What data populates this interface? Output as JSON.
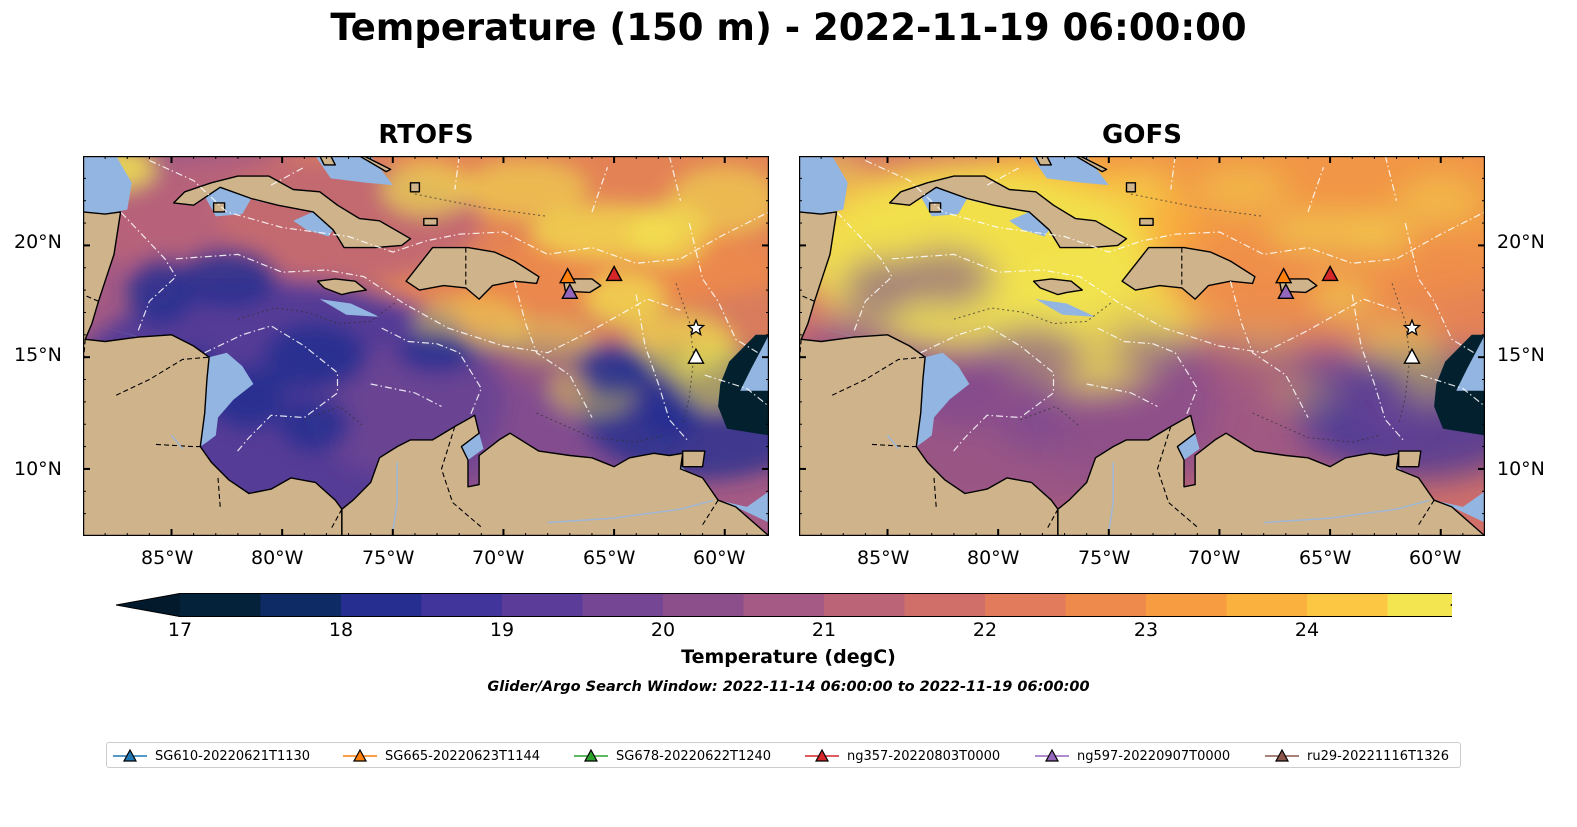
{
  "title": "Temperature (150 m) - 2022-11-19 06:00:00",
  "panels": [
    {
      "title": "RTOFS",
      "warm_scale": 1.0
    },
    {
      "title": "GOFS",
      "warm_scale": 0.75
    }
  ],
  "map_extent": {
    "lon": [
      -89,
      -58
    ],
    "lat": [
      7,
      24
    ]
  },
  "lon_ticks": [
    "85°W",
    "80°W",
    "75°W",
    "70°W",
    "65°W",
    "60°W"
  ],
  "lat_ticks": [
    "20°N",
    "15°N",
    "10°N"
  ],
  "colorbar": {
    "label": "Temperature (degC)",
    "ticks": [
      "17",
      "18",
      "19",
      "20",
      "21",
      "22",
      "23",
      "24"
    ],
    "colors": [
      "#04223a",
      "#0e2b66",
      "#262f90",
      "#41349a",
      "#5b3c98",
      "#744693",
      "#8c4f8c",
      "#a45a84",
      "#bb6478",
      "#d06f6a",
      "#e17b5b",
      "#ee8a4c",
      "#f79c40",
      "#fbb13d",
      "#fcc843",
      "#f2e54f"
    ],
    "under_color": "#031a2c",
    "over_color": "#eff85a"
  },
  "colors": {
    "land": "#cfb38b",
    "shallow_water": "#93b5e1",
    "deep_cold": "#03202e"
  },
  "search_window": "Glider/Argo Search Window: 2022-11-14 06:00:00 to 2022-11-19 06:00:00",
  "legend": [
    {
      "label": "SG610-20220621T1130",
      "color": "#1f77b4"
    },
    {
      "label": "SG665-20220623T1144",
      "color": "#ff7f0e"
    },
    {
      "label": "SG678-20220622T1240",
      "color": "#2ca02c"
    },
    {
      "label": "ng357-20220803T0000",
      "color": "#d62728"
    },
    {
      "label": "ng597-20220907T0000",
      "color": "#9467bd"
    },
    {
      "label": "ru29-20221116T1326",
      "color": "#8c564b"
    }
  ],
  "markers": [
    {
      "lon": -67.1,
      "lat": 18.6,
      "color": "#ff7f0e",
      "shape": "triangle"
    },
    {
      "lon": -65.0,
      "lat": 18.7,
      "color": "#d62728",
      "shape": "triangle"
    },
    {
      "lon": -67.0,
      "lat": 17.9,
      "color": "#9467bd",
      "shape": "triangle"
    },
    {
      "lon": -61.3,
      "lat": 16.3,
      "color": "#ffffff",
      "shape": "star"
    },
    {
      "lon": -61.3,
      "lat": 15.0,
      "color": "#ffffff",
      "shape": "triangle"
    }
  ]
}
